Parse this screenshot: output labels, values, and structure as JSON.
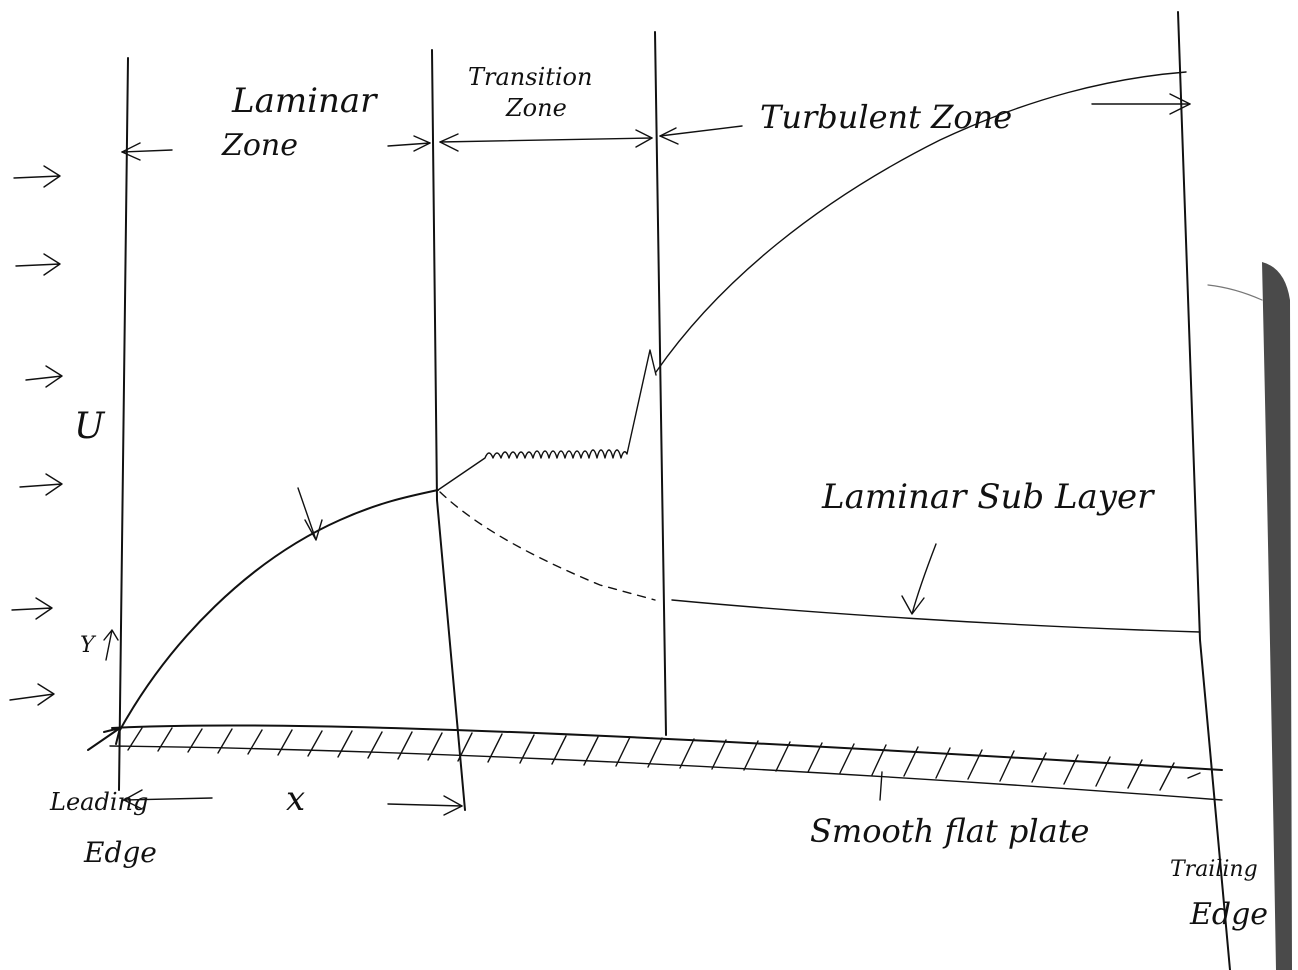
{
  "colors": {
    "ink": "#111111",
    "paper": "#ffffff",
    "shadow": "#222222"
  },
  "labels": {
    "laminar_zone_line1": "Laminar",
    "laminar_zone_line2": "Zone",
    "transition_zone_line1": "Transition",
    "transition_zone_line2": "Zone",
    "turbulent_zone": "Turbulent Zone",
    "velocity": "U",
    "y_axis": "Y",
    "x_axis": "x",
    "laminar_sub_layer": "Laminar Sub Layer",
    "smooth_flat_plate": "Smooth flat plate",
    "leading_edge_line1": "Leading",
    "leading_edge_line2": "Edge",
    "trailing_edge_line1": "Trailing",
    "trailing_edge_line2": "Edge"
  },
  "icons": {
    "free_stream_arrows": "right-arrow-icon",
    "dimension_arrows": "double-arrow-icon"
  }
}
